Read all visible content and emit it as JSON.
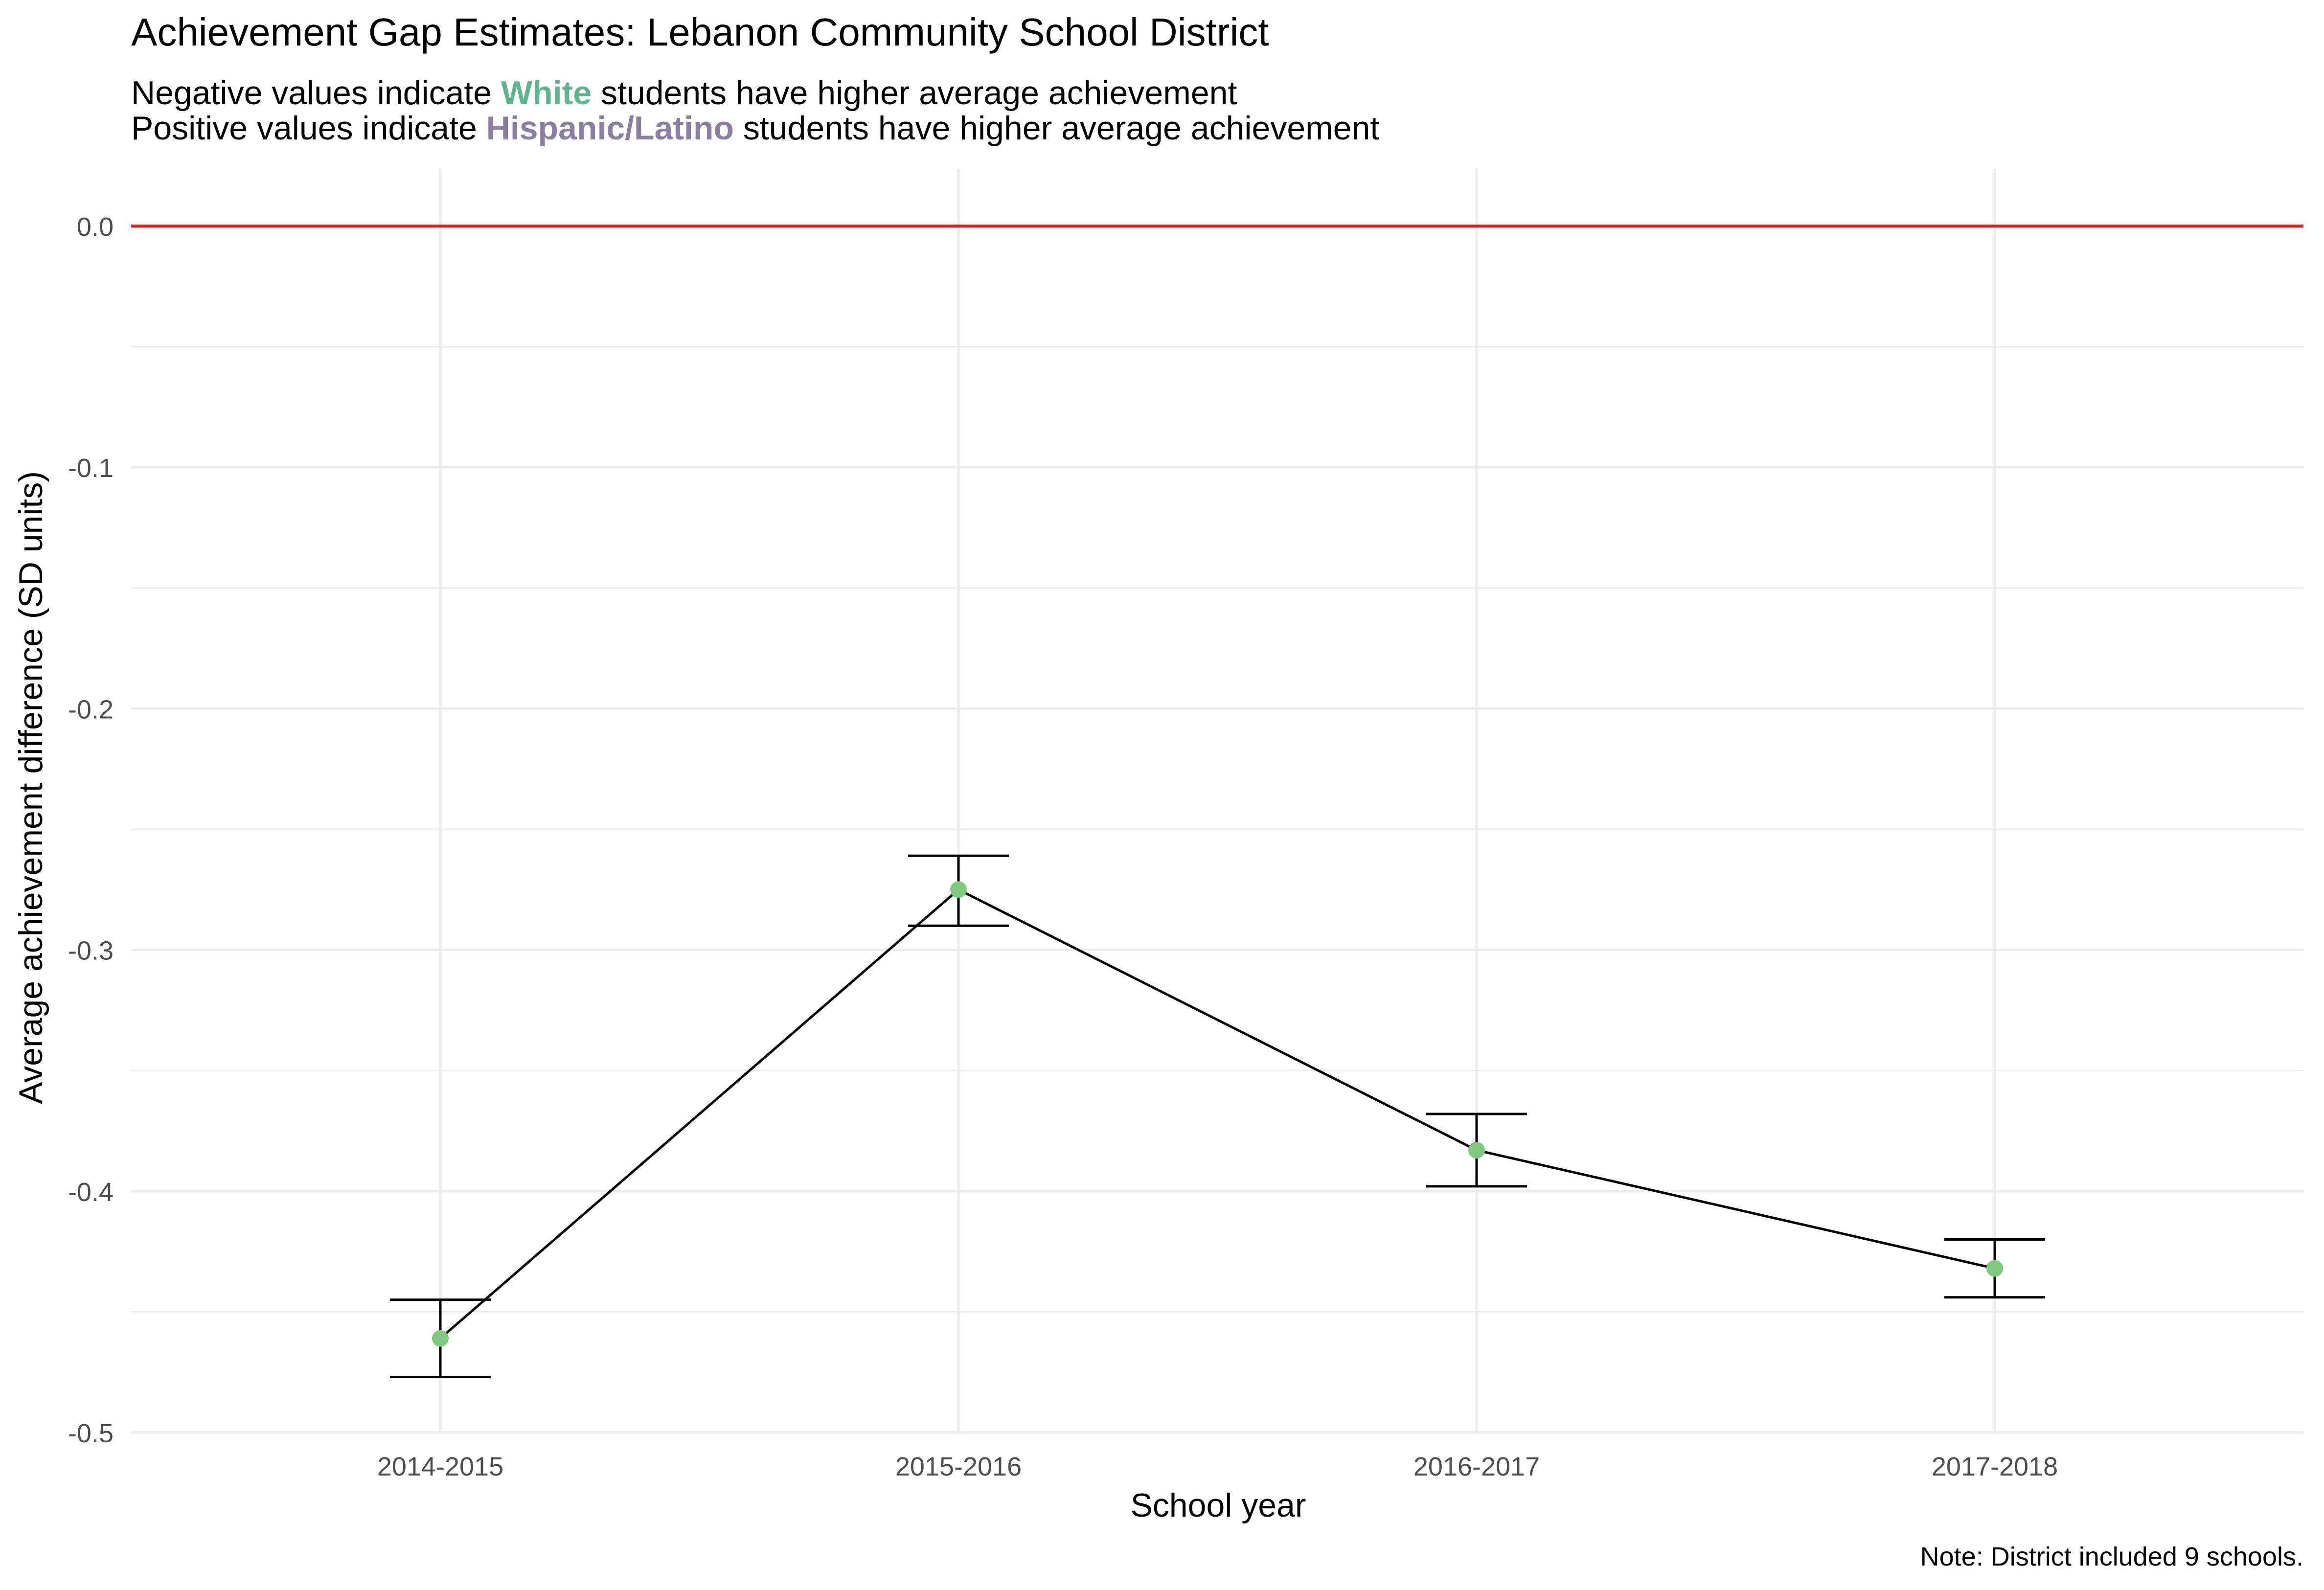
{
  "title": "Achievement Gap Estimates: Lebanon Community School District",
  "subtitle": {
    "line1": {
      "before": "Negative values indicate ",
      "group": "White",
      "after": " students have higher average achievement"
    },
    "line2": {
      "before": "Positive values indicate ",
      "group": "Hispanic/Latino",
      "after": " students have higher average achievement"
    }
  },
  "caption": "Note: District included 9 schools.",
  "colors": {
    "white_group": "#5fb48f",
    "hispanic_group": "#8a7fa0",
    "point": "#7fc97f",
    "zero_line": "#e41a1c",
    "line": "#000000",
    "grid": "#ebebeb",
    "text": "#000000",
    "tick_text": "#4d4d4d"
  },
  "chart_data": {
    "type": "line",
    "title": "Achievement Gap Estimates: Lebanon Community School District",
    "xlabel": "School year",
    "ylabel": "Average achievement difference (SD units)",
    "categories": [
      "2014-2015",
      "2015-2016",
      "2016-2017",
      "2017-2018"
    ],
    "series": [
      {
        "values": [
          -0.461,
          -0.275,
          -0.383,
          -0.432
        ],
        "error_low": [
          -0.477,
          -0.29,
          -0.398,
          -0.444
        ],
        "error_high": [
          -0.445,
          -0.261,
          -0.368,
          -0.42
        ]
      }
    ],
    "reference_line": {
      "y": 0.0
    },
    "ylim": [
      -0.5,
      0.0
    ],
    "yticks": [
      "0.0",
      "-0.1",
      "-0.2",
      "-0.3",
      "-0.4",
      "-0.5"
    ],
    "ytick_values": [
      0.0,
      -0.1,
      -0.2,
      -0.3,
      -0.4,
      -0.5
    ],
    "grid": true,
    "legend": "none"
  }
}
